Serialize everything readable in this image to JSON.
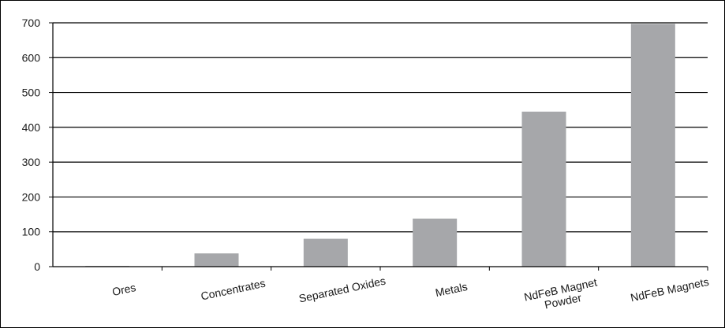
{
  "chart_data": {
    "type": "bar",
    "title": "",
    "xlabel": "",
    "ylabel": "",
    "categories": [
      "Ores",
      "Concentrates",
      "Separated Oxides",
      "Metals",
      "NdFeB Magnet Powder",
      "NdFeB Magnets"
    ],
    "category_lines": [
      [
        "Ores"
      ],
      [
        "Concentrates"
      ],
      [
        "Separated Oxides"
      ],
      [
        "Metals"
      ],
      [
        "NdFeB Magnet",
        "Powder"
      ],
      [
        "NdFeB Magnets"
      ]
    ],
    "values": [
      2,
      38,
      80,
      138,
      445,
      697
    ],
    "ylim": [
      0,
      700
    ],
    "yticks": [
      0,
      100,
      200,
      300,
      400,
      500,
      600,
      700
    ],
    "grid": true,
    "legend": "none",
    "colors": {
      "bar": "#a6a7aa",
      "grid": "#000000",
      "text": "#1a1a1a"
    }
  }
}
